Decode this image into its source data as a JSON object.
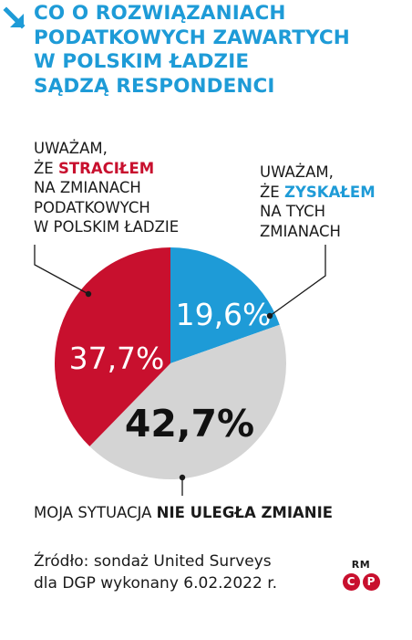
{
  "title_lines": [
    "CO O ROZWIĄZANIACH",
    "PODATKOWYCH ZAWARTYCH",
    "W POLSKIM ŁADZIE",
    "SĄDZĄ RESPONDENCI"
  ],
  "captions": {
    "lost": {
      "line1": "UWAŻAM,",
      "line2_prefix": "ŻE ",
      "line2_highlight": "STRACIŁEM",
      "line3": "NA ZMIANACH",
      "line4": "PODATKOWYCH",
      "line5": "W POLSKIM ŁADZIE"
    },
    "gained": {
      "line1": "UWAŻAM,",
      "line2_prefix": "ŻE ",
      "line2_highlight": "ZYSKAŁEM",
      "line3": "NA TYCH",
      "line4": "ZMIANACH"
    },
    "unchanged": {
      "prefix": "MOJA SYTUACJA ",
      "highlight": "NIE ULEGŁA ZMIANIE"
    }
  },
  "chart_data": {
    "type": "pie",
    "slices": [
      {
        "key": "gained",
        "value": 19.6,
        "label": "19,6%",
        "color": "#1e9bd7"
      },
      {
        "key": "unchanged",
        "value": 42.7,
        "label": "42,7%",
        "color": "#d4d4d4"
      },
      {
        "key": "lost",
        "value": 37.7,
        "label": "37,7%",
        "color": "#c8102e"
      }
    ]
  },
  "source_lines": [
    "Źródło: sondaż United Surveys",
    "dla DGP wykonany 6.02.2022 r."
  ],
  "brand": {
    "text": "RM",
    "icons": [
      "copyright-icon",
      "p-circle-icon"
    ],
    "icon_glyphs": [
      "C",
      "P"
    ]
  }
}
